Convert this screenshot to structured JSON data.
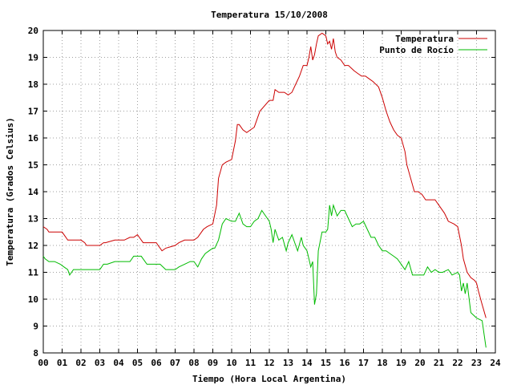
{
  "chart_data": {
    "type": "line",
    "title": "Temperatura 15/10/2008",
    "xlabel": "Tiempo (Hora Local Argentina)",
    "ylabel": "Temperatura (Grados Celsius)",
    "xlim": [
      0,
      24
    ],
    "ylim": [
      8,
      20
    ],
    "grid": true,
    "legend_position": "top-right",
    "x_tick_labels": [
      "00",
      "01",
      "02",
      "03",
      "04",
      "05",
      "06",
      "07",
      "08",
      "09",
      "10",
      "11",
      "12",
      "13",
      "14",
      "15",
      "16",
      "17",
      "18",
      "19",
      "20",
      "21",
      "22",
      "23",
      "24"
    ],
    "y_tick_labels": [
      "8",
      "9",
      "10",
      "11",
      "12",
      "13",
      "14",
      "15",
      "16",
      "17",
      "18",
      "19",
      "20"
    ],
    "series": [
      {
        "name": "Temperatura",
        "color": "#cc0000",
        "x": [
          0,
          0.2,
          0.3,
          1.0,
          1.2,
          1.3,
          2.0,
          2.2,
          2.3,
          3.0,
          3.2,
          3.3,
          3.8,
          4.0,
          4.3,
          4.6,
          4.8,
          5.0,
          5.1,
          5.3,
          5.5,
          6.0,
          6.1,
          6.3,
          6.5,
          7.0,
          7.2,
          7.5,
          8.0,
          8.2,
          8.5,
          8.7,
          9.0,
          9.2,
          9.3,
          9.5,
          9.7,
          10.0,
          10.2,
          10.3,
          10.4,
          10.6,
          10.8,
          11.0,
          11.2,
          11.4,
          11.5,
          12.0,
          12.2,
          12.3,
          12.5,
          12.8,
          13.0,
          13.2,
          13.4,
          13.6,
          13.8,
          14.0,
          14.1,
          14.2,
          14.3,
          14.4,
          14.5,
          14.6,
          14.8,
          15.0,
          15.1,
          15.2,
          15.3,
          15.4,
          15.5,
          15.6,
          15.8,
          16.0,
          16.2,
          16.5,
          16.7,
          16.9,
          17.1,
          17.3,
          17.5,
          17.8,
          18.0,
          18.2,
          18.4,
          18.6,
          18.8,
          19.0,
          19.2,
          19.3,
          19.5,
          19.7,
          19.9,
          20.1,
          20.3,
          20.5,
          20.8,
          21.0,
          21.3,
          21.5,
          21.8,
          22.0,
          22.2,
          22.3,
          22.5,
          22.7,
          22.9,
          23.0,
          23.1,
          23.3,
          23.5
        ],
        "values": [
          12.7,
          12.6,
          12.5,
          12.5,
          12.3,
          12.2,
          12.2,
          12.1,
          12.0,
          12.0,
          12.1,
          12.1,
          12.2,
          12.2,
          12.2,
          12.3,
          12.3,
          12.4,
          12.3,
          12.1,
          12.1,
          12.1,
          12.0,
          11.8,
          11.9,
          12.0,
          12.1,
          12.2,
          12.2,
          12.3,
          12.6,
          12.7,
          12.8,
          13.5,
          14.5,
          15.0,
          15.1,
          15.2,
          15.9,
          16.5,
          16.5,
          16.3,
          16.2,
          16.3,
          16.4,
          16.8,
          17.0,
          17.4,
          17.4,
          17.8,
          17.7,
          17.7,
          17.6,
          17.7,
          18.0,
          18.3,
          18.7,
          18.7,
          19.0,
          19.4,
          18.9,
          19.1,
          19.5,
          19.8,
          19.9,
          19.8,
          19.5,
          19.6,
          19.3,
          19.7,
          19.2,
          19.0,
          18.9,
          18.7,
          18.7,
          18.5,
          18.4,
          18.3,
          18.3,
          18.2,
          18.1,
          17.9,
          17.5,
          17.0,
          16.6,
          16.3,
          16.1,
          16.0,
          15.5,
          15.0,
          14.5,
          14.0,
          14.0,
          13.9,
          13.7,
          13.7,
          13.7,
          13.5,
          13.2,
          12.9,
          12.8,
          12.7,
          12.0,
          11.5,
          11.0,
          10.8,
          10.7,
          10.6,
          10.3,
          9.8,
          9.3
        ]
      },
      {
        "name": "Punto de Rocío",
        "color": "#00bb00",
        "x": [
          0,
          0.1,
          0.3,
          0.6,
          0.9,
          1.1,
          1.3,
          1.4,
          1.6,
          1.8,
          2.0,
          2.2,
          2.4,
          2.6,
          3.0,
          3.2,
          3.4,
          3.8,
          4.0,
          4.3,
          4.6,
          4.8,
          5.0,
          5.2,
          5.5,
          6.0,
          6.2,
          6.5,
          7.0,
          7.2,
          7.5,
          7.8,
          8.0,
          8.2,
          8.4,
          8.6,
          8.8,
          9.0,
          9.1,
          9.3,
          9.5,
          9.7,
          10.0,
          10.2,
          10.4,
          10.6,
          10.8,
          11.0,
          11.2,
          11.4,
          11.6,
          11.8,
          12.0,
          12.1,
          12.2,
          12.3,
          12.4,
          12.5,
          12.7,
          12.9,
          13.0,
          13.2,
          13.4,
          13.5,
          13.7,
          13.8,
          14.0,
          14.1,
          14.2,
          14.3,
          14.4,
          14.5,
          14.6,
          14.8,
          15.0,
          15.1,
          15.2,
          15.3,
          15.4,
          15.5,
          15.6,
          15.8,
          16.0,
          16.2,
          16.4,
          16.6,
          16.8,
          17.0,
          17.2,
          17.4,
          17.6,
          17.8,
          18.0,
          18.2,
          18.4,
          18.6,
          18.8,
          19.0,
          19.2,
          19.4,
          19.6,
          19.8,
          20.0,
          20.2,
          20.4,
          20.6,
          20.8,
          21.0,
          21.2,
          21.5,
          21.7,
          22.0,
          22.1,
          22.2,
          22.3,
          22.4,
          22.5,
          22.7,
          23.0,
          23.3,
          23.5
        ],
        "values": [
          11.6,
          11.5,
          11.4,
          11.4,
          11.3,
          11.2,
          11.1,
          10.9,
          11.1,
          11.1,
          11.1,
          11.1,
          11.1,
          11.1,
          11.1,
          11.3,
          11.3,
          11.4,
          11.4,
          11.4,
          11.4,
          11.6,
          11.6,
          11.6,
          11.3,
          11.3,
          11.3,
          11.1,
          11.1,
          11.2,
          11.3,
          11.4,
          11.4,
          11.2,
          11.5,
          11.7,
          11.8,
          11.9,
          11.9,
          12.2,
          12.8,
          13.0,
          12.9,
          12.9,
          13.2,
          12.8,
          12.7,
          12.7,
          12.9,
          13.0,
          13.3,
          13.1,
          12.9,
          12.6,
          12.1,
          12.6,
          12.4,
          12.2,
          12.3,
          11.8,
          12.1,
          12.4,
          12.0,
          11.8,
          12.3,
          12.0,
          11.8,
          11.5,
          11.2,
          11.4,
          9.8,
          10.2,
          11.8,
          12.5,
          12.5,
          12.6,
          13.5,
          13.1,
          13.5,
          13.3,
          13.1,
          13.3,
          13.3,
          13.0,
          12.7,
          12.8,
          12.8,
          12.9,
          12.6,
          12.3,
          12.3,
          12.0,
          11.8,
          11.8,
          11.7,
          11.6,
          11.5,
          11.3,
          11.1,
          11.4,
          10.9,
          10.9,
          10.9,
          10.9,
          11.2,
          11.0,
          11.1,
          11.0,
          11.0,
          11.1,
          10.9,
          11.0,
          10.9,
          10.3,
          10.6,
          10.2,
          10.6,
          9.5,
          9.3,
          9.2,
          8.2
        ]
      }
    ]
  }
}
